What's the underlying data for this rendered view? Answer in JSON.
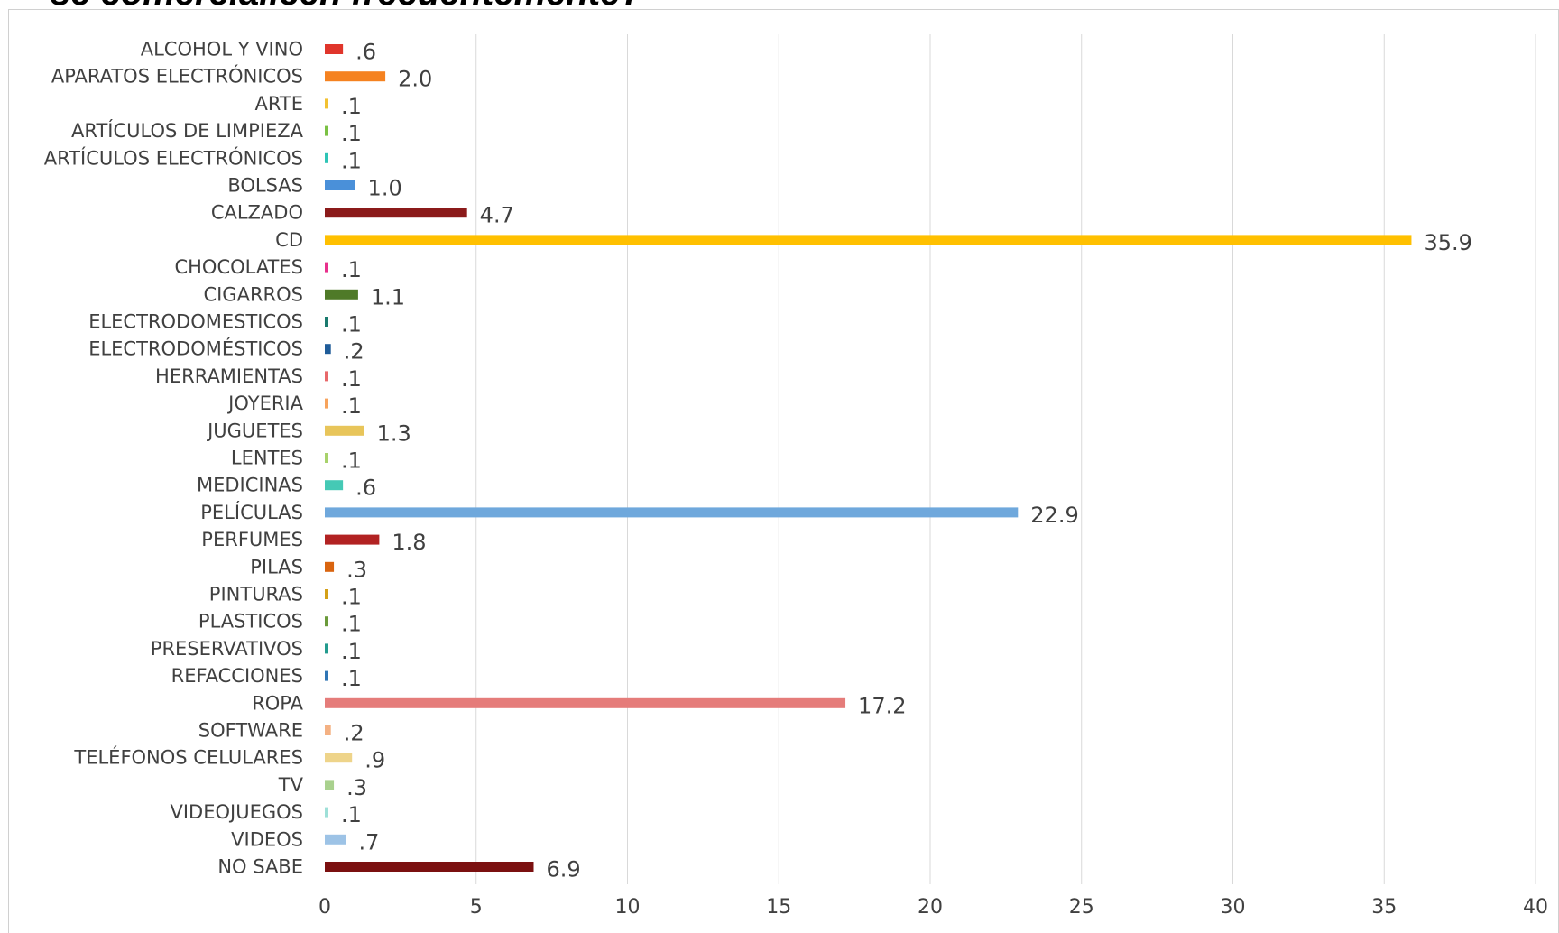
{
  "title": "se comercialicen frecuentemente?",
  "chart_data": {
    "type": "bar",
    "orientation": "horizontal",
    "categories": [
      "ALCOHOL Y VINO",
      "APARATOS ELECTRÓNICOS",
      "ARTE",
      "ARTÍCULOS DE LIMPIEZA",
      "ARTÍCULOS ELECTRÓNICOS",
      "BOLSAS",
      "CALZADO",
      "CD",
      "CHOCOLATES",
      "CIGARROS",
      "ELECTRODOMESTICOS",
      "ELECTRODOMÉSTICOS",
      "HERRAMIENTAS",
      "JOYERIA",
      "JUGUETES",
      "LENTES",
      "MEDICINAS",
      "PELÍCULAS",
      "PERFUMES",
      "PILAS",
      "PINTURAS",
      "PLASTICOS",
      "PRESERVATIVOS",
      "REFACCIONES",
      "ROPA",
      "SOFTWARE",
      "TELÉFONOS CELULARES",
      "TV",
      "VIDEOJUEGOS",
      "VIDEOS",
      "NO SABE"
    ],
    "values": [
      0.6,
      2.0,
      0.1,
      0.1,
      0.1,
      1.0,
      4.7,
      35.9,
      0.1,
      1.1,
      0.1,
      0.2,
      0.1,
      0.1,
      1.3,
      0.1,
      0.6,
      22.9,
      1.8,
      0.3,
      0.1,
      0.1,
      0.1,
      0.1,
      17.2,
      0.2,
      0.9,
      0.3,
      0.1,
      0.7,
      6.9
    ],
    "value_labels": [
      ".6",
      "2.0",
      ".1",
      ".1",
      ".1",
      "1.0",
      "4.7",
      "35.9",
      ".1",
      "1.1",
      ".1",
      ".2",
      ".1",
      ".1",
      "1.3",
      ".1",
      ".6",
      "22.9",
      "1.8",
      ".3",
      ".1",
      ".1",
      ".1",
      ".1",
      "17.2",
      ".2",
      ".9",
      ".3",
      ".1",
      ".7",
      "6.9"
    ],
    "colors": [
      "#e0352b",
      "#f58220",
      "#f2c131",
      "#7ac143",
      "#2ec4b6",
      "#4a90d9",
      "#8b1a1a",
      "#ffc000",
      "#e8308c",
      "#4f7a28",
      "#1a7a6e",
      "#1f5c99",
      "#e8686a",
      "#f7a35c",
      "#e8c55a",
      "#a8d26b",
      "#45c9b5",
      "#6fa8dc",
      "#b22222",
      "#d9640f",
      "#d4a017",
      "#6a9a3a",
      "#239b8e",
      "#2f75b5",
      "#e57c7a",
      "#f4b183",
      "#eed48a",
      "#a9d18e",
      "#9ee0d8",
      "#9dc3e6",
      "#7b1010"
    ],
    "xticks": [
      "0",
      "5",
      "10",
      "15",
      "20",
      "25",
      "30",
      "35",
      "40"
    ],
    "xlim": [
      0,
      40
    ],
    "xlabel": "",
    "ylabel": "",
    "grid": "vertical"
  }
}
